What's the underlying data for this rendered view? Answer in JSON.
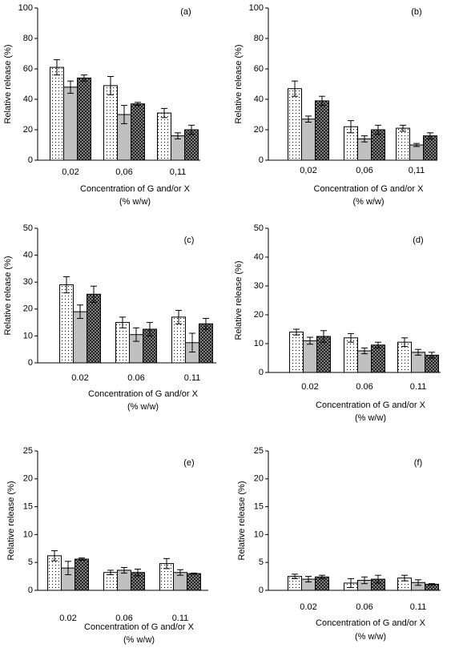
{
  "chart_data": [
    {
      "type": "bar",
      "label": "(a)",
      "ylabel": "Relative release (%)",
      "xlabel": [
        "Concentration of G and/or X",
        "(% w/w)"
      ],
      "categories": [
        "0,02",
        "0,06",
        "0,11"
      ],
      "ylim": [
        0,
        100
      ],
      "yticks": [
        0,
        20,
        40,
        60,
        80,
        100
      ],
      "series": [
        {
          "color": "#ffffff",
          "pattern": "dots",
          "values": [
            61,
            49,
            31
          ],
          "errors": [
            5,
            6,
            3
          ]
        },
        {
          "color": "#c0c0c0",
          "pattern": "solid",
          "values": [
            48,
            30,
            16
          ],
          "errors": [
            4,
            6,
            2
          ]
        },
        {
          "color": "#808080",
          "pattern": "checker",
          "values": [
            54,
            37,
            20
          ],
          "errors": [
            2,
            1,
            3
          ]
        }
      ]
    },
    {
      "type": "bar",
      "label": "(b)",
      "ylabel": "Relative release (%)",
      "xlabel": [
        "Concentration of G and/or X",
        "(% w/w)"
      ],
      "categories": [
        "0,02",
        "0,06",
        "0,11"
      ],
      "ylim": [
        0,
        100
      ],
      "yticks": [
        0,
        20,
        40,
        60,
        80,
        100
      ],
      "series": [
        {
          "color": "#ffffff",
          "pattern": "dots",
          "values": [
            47,
            22,
            21
          ],
          "errors": [
            5,
            4,
            2
          ]
        },
        {
          "color": "#c0c0c0",
          "pattern": "solid",
          "values": [
            27,
            14,
            10
          ],
          "errors": [
            2,
            2,
            1
          ]
        },
        {
          "color": "#808080",
          "pattern": "checker",
          "values": [
            39,
            20,
            16
          ],
          "errors": [
            3,
            3,
            2
          ]
        }
      ]
    },
    {
      "type": "bar",
      "label": "(c)",
      "ylabel": "Relative release (%)",
      "xlabel": [
        "Concentration of G and/or X",
        "(% w/w)"
      ],
      "categories": [
        "0.02",
        "0.06",
        "0.11"
      ],
      "ylim": [
        0,
        50
      ],
      "yticks": [
        0,
        10,
        20,
        30,
        40,
        50
      ],
      "series": [
        {
          "color": "#ffffff",
          "pattern": "dots",
          "values": [
            29,
            15,
            17
          ],
          "errors": [
            3,
            2,
            2.5
          ]
        },
        {
          "color": "#c0c0c0",
          "pattern": "solid",
          "values": [
            19,
            10.5,
            7.5
          ],
          "errors": [
            2.5,
            2.5,
            3.5
          ]
        },
        {
          "color": "#808080",
          "pattern": "checker",
          "values": [
            25.5,
            12.5,
            14.5
          ],
          "errors": [
            3,
            2.5,
            2
          ]
        }
      ]
    },
    {
      "type": "bar",
      "label": "(d)",
      "ylabel": "Relative release (%)",
      "xlabel": [
        "Concentration of G and/or X",
        "(% w/w)"
      ],
      "categories": [
        "0.02",
        "0.06",
        "0.11"
      ],
      "ylim": [
        0,
        50
      ],
      "yticks": [
        0,
        10,
        20,
        30,
        40,
        50
      ],
      "series": [
        {
          "color": "#ffffff",
          "pattern": "dots",
          "values": [
            14,
            12,
            10.5
          ],
          "errors": [
            1,
            1.5,
            1.5
          ]
        },
        {
          "color": "#c0c0c0",
          "pattern": "solid",
          "values": [
            11,
            7.5,
            7
          ],
          "errors": [
            1.2,
            1,
            1
          ]
        },
        {
          "color": "#808080",
          "pattern": "checker",
          "values": [
            12.5,
            9.5,
            6
          ],
          "errors": [
            2,
            1,
            1
          ]
        }
      ]
    },
    {
      "type": "bar",
      "label": "(e)",
      "ylabel": "Relative release (%)",
      "xlabel": [
        "Concentration of G and/or X",
        "(% w/w)"
      ],
      "categories": [
        "0.02",
        "0.06",
        "0.11"
      ],
      "ylim": [
        0,
        25
      ],
      "yticks": [
        0,
        5,
        10,
        15,
        20,
        25
      ],
      "series": [
        {
          "color": "#ffffff",
          "pattern": "dots",
          "values": [
            6.2,
            3.2,
            4.8
          ],
          "errors": [
            0.9,
            0.4,
            0.9
          ]
        },
        {
          "color": "#c0c0c0",
          "pattern": "solid",
          "values": [
            4,
            3.6,
            3.2
          ],
          "errors": [
            1.2,
            0.5,
            0.5
          ]
        },
        {
          "color": "#808080",
          "pattern": "checker",
          "values": [
            5.6,
            3.2,
            3
          ],
          "errors": [
            0.2,
            0.6,
            0.1
          ]
        }
      ]
    },
    {
      "type": "bar",
      "label": "(f)",
      "ylabel": "Relative release (%)",
      "xlabel": [
        "Concentration of G and/or X",
        "(% w/w)"
      ],
      "categories": [
        "0.02",
        "0.06",
        "0.11"
      ],
      "ylim": [
        0,
        25
      ],
      "yticks": [
        0,
        5,
        10,
        15,
        20,
        25
      ],
      "series": [
        {
          "color": "#ffffff",
          "pattern": "dots",
          "values": [
            2.5,
            1.3,
            2.2
          ],
          "errors": [
            0.4,
            0.8,
            0.5
          ]
        },
        {
          "color": "#c0c0c0",
          "pattern": "solid",
          "values": [
            2,
            1.8,
            1.4
          ],
          "errors": [
            0.5,
            0.6,
            0.5
          ]
        },
        {
          "color": "#808080",
          "pattern": "checker",
          "values": [
            2.4,
            2,
            1.1
          ],
          "errors": [
            0.3,
            0.7,
            0.1
          ]
        }
      ]
    }
  ]
}
